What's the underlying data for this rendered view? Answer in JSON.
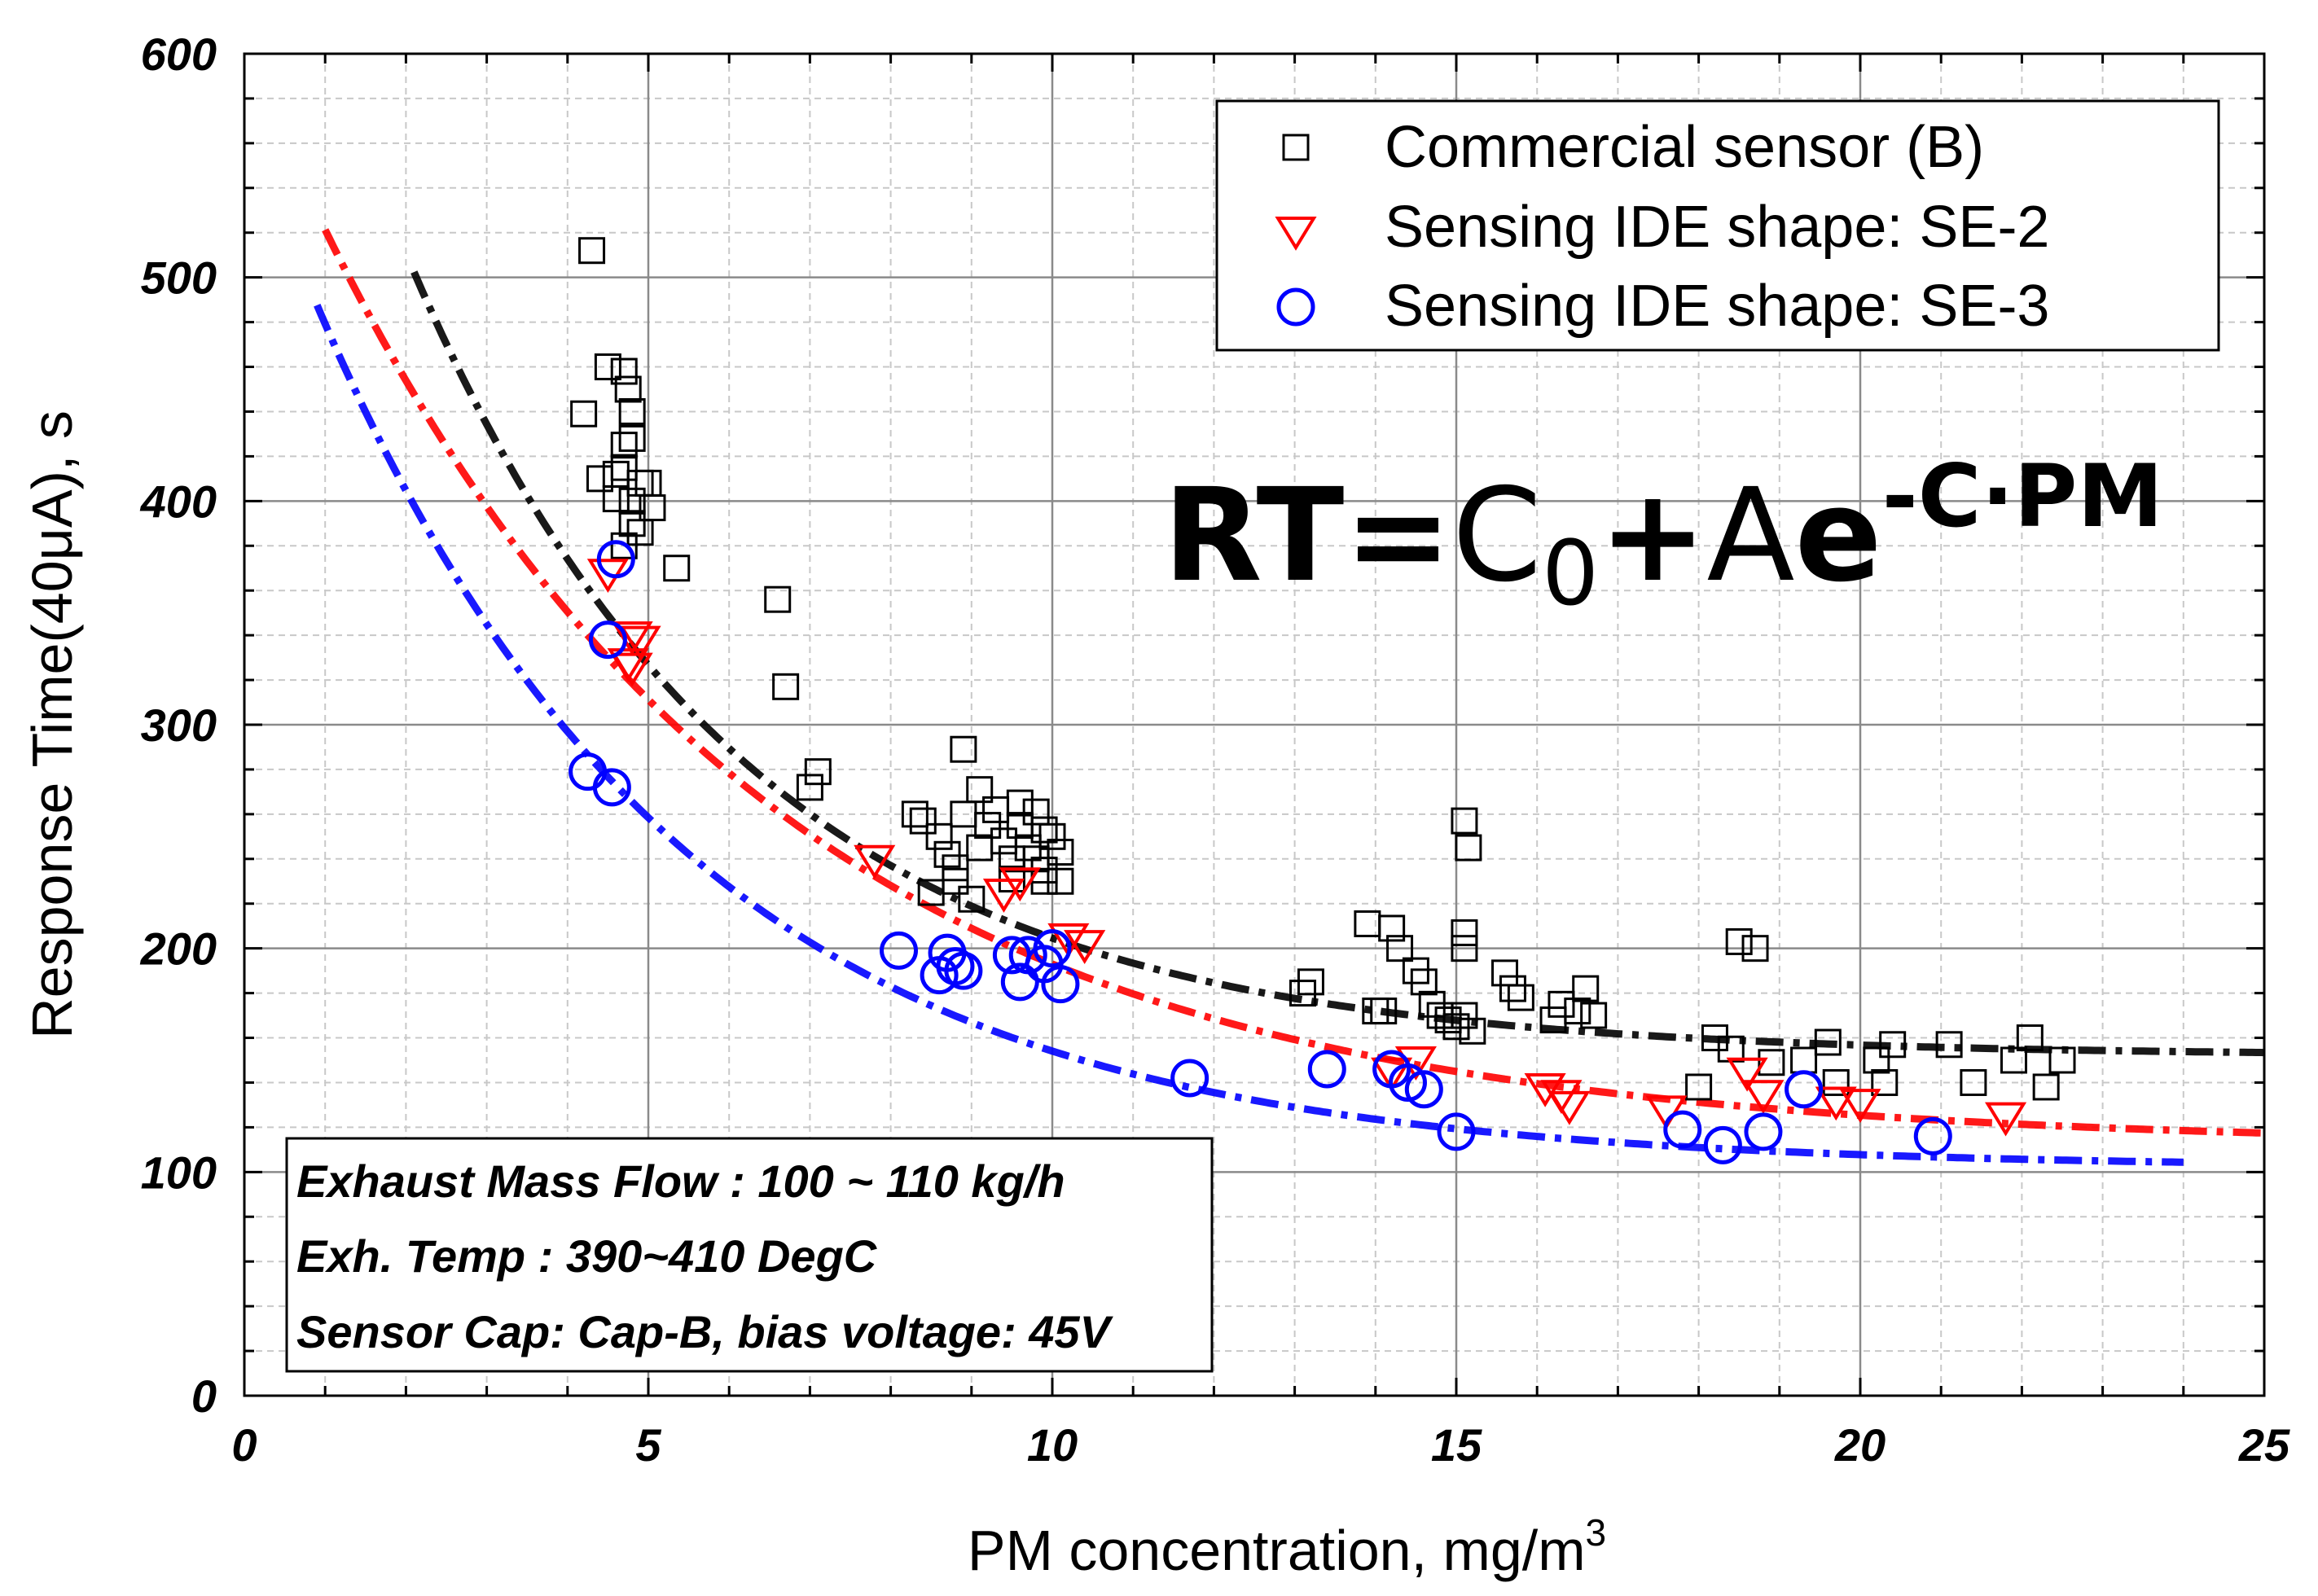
{
  "chart_data": {
    "type": "scatter",
    "title": "",
    "xlabel": "PM concentration, mg/m",
    "xlabel_sup": "3",
    "ylabel": "Response Time(40μA), s",
    "xlim": [
      0,
      25
    ],
    "ylim": [
      0,
      600
    ],
    "xticks": [
      "0",
      "5",
      "10",
      "15",
      "20",
      "25"
    ],
    "yticks": [
      "0",
      "100",
      "200",
      "300",
      "400",
      "500",
      "600"
    ],
    "grid": true,
    "legend_position": "top-right",
    "colors": {
      "black": "#000000",
      "red": "#ff0000",
      "blue": "#0000ff"
    },
    "equation": {
      "lhs": "RT",
      "eq": "=",
      "c": "C",
      "c_sub": "0",
      "plus": "+",
      "a": "A",
      "e": "e",
      "exp": "-C·PM"
    },
    "conditions": [
      "Exhaust Mass Flow : 100 ~ 110 kg/h",
      "Exh. Temp : 390~410 DegC",
      "Sensor Cap: Cap-B, bias voltage: 45V"
    ],
    "series": [
      {
        "name": "Commercial sensor (B)",
        "marker": "square",
        "color": "#000000",
        "fit": {
          "C0": 152,
          "A": 580,
          "C": 0.24,
          "x_start": 2.1,
          "x_end": 25
        },
        "points": [
          [
            4.3,
            512
          ],
          [
            4.2,
            439
          ],
          [
            4.4,
            410
          ],
          [
            4.5,
            460
          ],
          [
            4.6,
            401
          ],
          [
            4.7,
            458
          ],
          [
            4.75,
            450
          ],
          [
            4.8,
            440
          ],
          [
            4.7,
            425
          ],
          [
            4.8,
            428
          ],
          [
            4.6,
            412
          ],
          [
            4.7,
            415
          ],
          [
            4.9,
            408
          ],
          [
            4.8,
            400
          ],
          [
            5.0,
            408
          ],
          [
            5.05,
            397
          ],
          [
            4.8,
            390
          ],
          [
            4.9,
            386
          ],
          [
            4.7,
            380
          ],
          [
            5.35,
            370
          ],
          [
            6.6,
            356
          ],
          [
            6.7,
            317
          ],
          [
            7.0,
            272
          ],
          [
            7.1,
            279
          ],
          [
            8.9,
            289
          ],
          [
            8.3,
            260
          ],
          [
            8.4,
            257
          ],
          [
            8.6,
            250
          ],
          [
            8.7,
            242
          ],
          [
            8.8,
            236
          ],
          [
            8.9,
            260
          ],
          [
            9.1,
            271
          ],
          [
            9.2,
            255
          ],
          [
            9.3,
            262
          ],
          [
            9.4,
            248
          ],
          [
            9.5,
            240
          ],
          [
            9.6,
            255
          ],
          [
            9.7,
            245
          ],
          [
            9.8,
            261
          ],
          [
            9.9,
            253
          ],
          [
            10.0,
            250
          ],
          [
            10.1,
            243
          ],
          [
            8.5,
            225
          ],
          [
            8.8,
            230
          ],
          [
            9.0,
            222
          ],
          [
            9.5,
            231
          ],
          [
            9.9,
            235
          ],
          [
            10.1,
            230
          ],
          [
            9.1,
            245
          ],
          [
            9.6,
            265
          ],
          [
            9.8,
            240
          ],
          [
            9.9,
            230
          ],
          [
            13.1,
            180
          ],
          [
            13.2,
            185
          ],
          [
            13.9,
            211
          ],
          [
            14.1,
            172
          ],
          [
            14.2,
            209
          ],
          [
            14.0,
            172
          ],
          [
            14.3,
            200
          ],
          [
            14.5,
            190
          ],
          [
            14.6,
            185
          ],
          [
            14.7,
            175
          ],
          [
            14.8,
            170
          ],
          [
            14.9,
            168
          ],
          [
            15.0,
            165
          ],
          [
            15.1,
            170
          ],
          [
            15.2,
            163
          ],
          [
            15.1,
            257
          ],
          [
            15.15,
            245
          ],
          [
            15.1,
            207
          ],
          [
            15.1,
            200
          ],
          [
            15.6,
            189
          ],
          [
            15.7,
            182
          ],
          [
            15.8,
            178
          ],
          [
            16.2,
            168
          ],
          [
            16.3,
            175
          ],
          [
            16.5,
            172
          ],
          [
            16.6,
            182
          ],
          [
            16.7,
            170
          ],
          [
            18.0,
            138
          ],
          [
            18.2,
            160
          ],
          [
            18.4,
            155
          ],
          [
            18.5,
            203
          ],
          [
            18.7,
            200
          ],
          [
            18.9,
            149
          ],
          [
            19.3,
            150
          ],
          [
            19.6,
            158
          ],
          [
            19.7,
            140
          ],
          [
            20.2,
            150
          ],
          [
            20.3,
            140
          ],
          [
            20.4,
            157
          ],
          [
            21.1,
            157
          ],
          [
            21.4,
            140
          ],
          [
            21.9,
            150
          ],
          [
            22.1,
            160
          ],
          [
            22.3,
            138
          ],
          [
            22.5,
            150
          ]
        ]
      },
      {
        "name": "Sensing IDE shape: SE-2",
        "marker": "triangle-down",
        "color": "#ff0000",
        "fit": {
          "C0": 112,
          "A": 490,
          "C": 0.18,
          "x_start": 1.0,
          "x_end": 25
        },
        "points": [
          [
            4.5,
            368
          ],
          [
            4.8,
            340
          ],
          [
            4.9,
            338
          ],
          [
            4.75,
            328
          ],
          [
            4.8,
            326
          ],
          [
            7.8,
            240
          ],
          [
            9.4,
            225
          ],
          [
            9.6,
            230
          ],
          [
            10.2,
            205
          ],
          [
            10.4,
            202
          ],
          [
            14.2,
            145
          ],
          [
            14.5,
            150
          ],
          [
            16.1,
            138
          ],
          [
            16.3,
            135
          ],
          [
            16.4,
            130
          ],
          [
            17.6,
            128
          ],
          [
            18.6,
            145
          ],
          [
            18.8,
            135
          ],
          [
            19.7,
            132
          ],
          [
            20.0,
            131
          ],
          [
            21.8,
            125
          ]
        ]
      },
      {
        "name": "Sensing IDE shape: SE-3",
        "marker": "circle",
        "color": "#0000ff",
        "fit": {
          "C0": 102,
          "A": 470,
          "C": 0.22,
          "x_start": 0.9,
          "x_end": 24
        },
        "points": [
          [
            4.6,
            374
          ],
          [
            4.5,
            338
          ],
          [
            4.25,
            279
          ],
          [
            4.55,
            272
          ],
          [
            8.1,
            199
          ],
          [
            8.6,
            188
          ],
          [
            8.7,
            198
          ],
          [
            8.8,
            192
          ],
          [
            8.9,
            190
          ],
          [
            9.5,
            197
          ],
          [
            9.6,
            185
          ],
          [
            9.7,
            197
          ],
          [
            9.9,
            193
          ],
          [
            10.0,
            200
          ],
          [
            10.1,
            184
          ],
          [
            11.7,
            142
          ],
          [
            13.4,
            146
          ],
          [
            14.2,
            146
          ],
          [
            14.4,
            140
          ],
          [
            14.6,
            137
          ],
          [
            15.0,
            118
          ],
          [
            17.8,
            119
          ],
          [
            18.3,
            112
          ],
          [
            18.8,
            118
          ],
          [
            19.3,
            137
          ],
          [
            20.9,
            116
          ]
        ]
      }
    ]
  }
}
